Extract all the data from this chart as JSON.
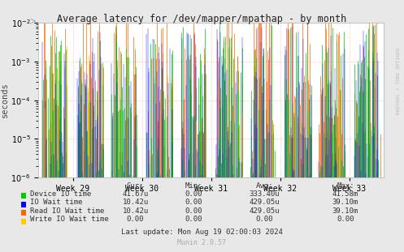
{
  "title": "Average latency for /dev/mapper/mpathap - by month",
  "ylabel": "seconds",
  "xtick_labels": [
    "Week 29",
    "Week 30",
    "Week 31",
    "Week 32",
    "Week 33"
  ],
  "bg_color": "#e8e8e8",
  "plot_bg_color": "#ffffff",
  "series_colors": [
    "#00cc00",
    "#0000ff",
    "#ff6600",
    "#ffcc00"
  ],
  "legend_rows": [
    [
      "Device IO time",
      "41.67u",
      "0.00",
      "333.40u",
      "41.58m"
    ],
    [
      "IO Wait time",
      "10.42u",
      "0.00",
      "429.05u",
      "39.10m"
    ],
    [
      "Read IO Wait time",
      "10.42u",
      "0.00",
      "429.05u",
      "39.10m"
    ],
    [
      "Write IO Wait time",
      "0.00",
      "0.00",
      "0.00",
      "0.00"
    ]
  ],
  "footer": "Last update: Mon Aug 19 02:00:03 2024",
  "munin_version": "Munin 2.0.57",
  "rrdtool_label": "RRDTOOL / TOBI OETIKER"
}
